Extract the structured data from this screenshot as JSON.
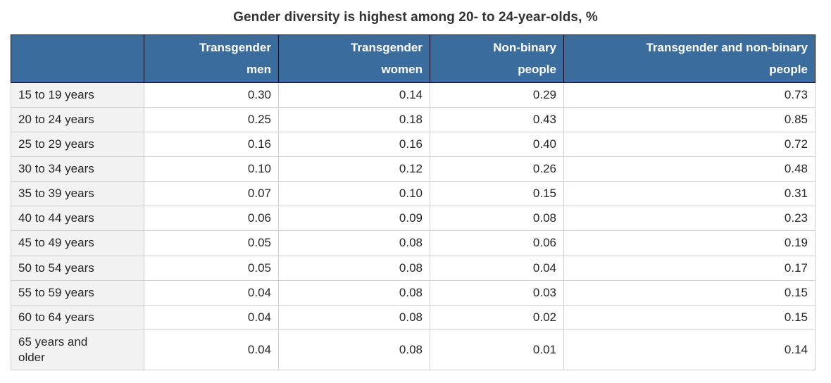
{
  "title": "Gender diversity is highest among 20- to 24-year-olds, %",
  "chart_data": {
    "type": "table",
    "title": "Gender diversity is highest among 20- to 24-year-olds, %",
    "unit": "%",
    "corner_header": "",
    "columns": [
      "Transgender men",
      "Transgender women",
      "Non-binary people",
      "Transgender and non-binary people"
    ],
    "column_display": [
      "Transgender\nmen",
      "Transgender\nwomen",
      "Non-binary\npeople",
      "Transgender and non-binary\npeople"
    ],
    "categories": [
      "15 to 19 years",
      "20 to 24 years",
      "25 to 29 years",
      "30 to 34 years",
      "35 to 39 years",
      "40 to 44 years",
      "45 to 49 years",
      "50 to 54 years",
      "55 to 59 years",
      "60 to 64 years",
      "65 years and older"
    ],
    "category_display": [
      "15 to 19 years",
      "20 to 24 years",
      "25 to 29 years",
      "30 to 34 years",
      "35 to 39 years",
      "40 to 44 years",
      "45 to 49 years",
      "50 to 54 years",
      "55 to 59 years",
      "60 to 64 years",
      "65 years and\nolder"
    ],
    "rows": [
      [
        "0.30",
        "0.14",
        "0.29",
        "0.73"
      ],
      [
        "0.25",
        "0.18",
        "0.43",
        "0.85"
      ],
      [
        "0.16",
        "0.16",
        "0.40",
        "0.72"
      ],
      [
        "0.10",
        "0.12",
        "0.26",
        "0.48"
      ],
      [
        "0.07",
        "0.10",
        "0.15",
        "0.31"
      ],
      [
        "0.06",
        "0.09",
        "0.08",
        "0.23"
      ],
      [
        "0.05",
        "0.08",
        "0.06",
        "0.19"
      ],
      [
        "0.05",
        "0.08",
        "0.04",
        "0.17"
      ],
      [
        "0.04",
        "0.08",
        "0.03",
        "0.15"
      ],
      [
        "0.04",
        "0.08",
        "0.02",
        "0.15"
      ],
      [
        "0.04",
        "0.08",
        "0.01",
        "0.14"
      ]
    ]
  },
  "colors": {
    "header_bg": "#3A6D9E",
    "header_text": "#FFFFFF",
    "header_border": "#000000",
    "row_label_bg": "#F2F2F2",
    "body_border": "#CFCFCF",
    "title_text": "#333333",
    "body_text": "#262626",
    "page_bg": "#FFFFFF"
  }
}
